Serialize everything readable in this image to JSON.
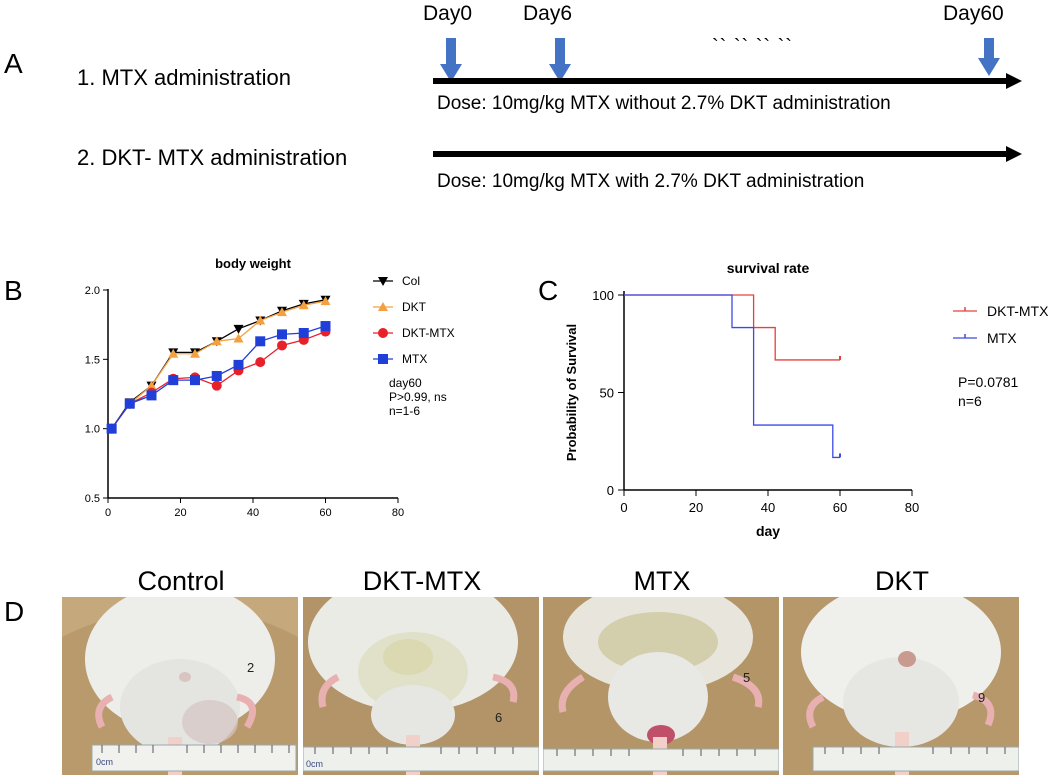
{
  "panel_a": {
    "letter": "A",
    "days": [
      "Day0",
      "Day6",
      "Day60"
    ],
    "ellipsis": "`` `` `` ``",
    "rows": [
      {
        "label": "1. MTX administration",
        "dose": "Dose:  10mg/kg MTX without 2.7% DKT administration"
      },
      {
        "label": "2. DKT- MTX administration",
        "dose": "Dose:  10mg/kg MTX with 2.7% DKT administration"
      }
    ]
  },
  "panel_d": {
    "letter": "D",
    "photos": [
      {
        "title": "Control",
        "mark": "2"
      },
      {
        "title": "DKT-MTX",
        "mark": "6"
      },
      {
        "title": "MTX",
        "mark": "5"
      },
      {
        "title": "DKT",
        "mark": "9"
      }
    ],
    "ruler_label": "0cm"
  },
  "colors": {
    "arrow": "#4472c4",
    "col": "#000000",
    "dkt": "#f5a040",
    "dktmtx": "#e8202a",
    "mtx": "#1f3fd8",
    "surv_dktmtx": "#e8403a",
    "surv_mtx": "#3a4ae8"
  },
  "chart_data": [
    {
      "type": "line",
      "panel": "B",
      "title": "body weight",
      "xlabel": "",
      "ylabel": "",
      "xlim": [
        0,
        80
      ],
      "ylim": [
        0.5,
        2.0
      ],
      "xticks": [
        0,
        20,
        40,
        60,
        80
      ],
      "yticks": [
        0.5,
        1.0,
        1.5,
        2.0
      ],
      "ytick_labels": [
        "0.5",
        "1.0",
        "1.5",
        "2.0"
      ],
      "x": [
        1,
        6,
        12,
        18,
        24,
        30,
        36,
        42,
        48,
        54,
        60
      ],
      "series": [
        {
          "name": "Col",
          "marker": "triangle-down",
          "color": "#000000",
          "values": [
            1.0,
            1.19,
            1.31,
            1.55,
            1.55,
            1.63,
            1.72,
            1.78,
            1.85,
            1.9,
            1.93
          ]
        },
        {
          "name": "DKT",
          "marker": "triangle-up",
          "color": "#f5a040",
          "values": [
            1.0,
            1.18,
            1.31,
            1.54,
            1.54,
            1.63,
            1.65,
            1.78,
            1.84,
            1.89,
            1.92
          ]
        },
        {
          "name": "DKT-MTX",
          "marker": "circle",
          "color": "#e8202a",
          "values": [
            1.0,
            1.18,
            1.26,
            1.36,
            1.37,
            1.31,
            1.42,
            1.48,
            1.6,
            1.64,
            1.7
          ]
        },
        {
          "name": "MTX",
          "marker": "square",
          "color": "#1f3fd8",
          "values": [
            1.0,
            1.18,
            1.24,
            1.35,
            1.35,
            1.38,
            1.46,
            1.63,
            1.68,
            1.69,
            1.74
          ]
        }
      ],
      "annotation": [
        "day60",
        "P>0.99, ns",
        "n=1-6"
      ]
    },
    {
      "type": "line",
      "panel": "C",
      "title": "survival rate",
      "xlabel": "day",
      "ylabel": "Probability of Survival",
      "xlim": [
        0,
        80
      ],
      "ylim": [
        0,
        100
      ],
      "xticks": [
        0,
        20,
        40,
        60,
        80
      ],
      "yticks": [
        0,
        50,
        100
      ],
      "series": [
        {
          "name": "DKT-MTX",
          "color": "#e8403a",
          "steps": [
            [
              0,
              100
            ],
            [
              36,
              100
            ],
            [
              36,
              83.3
            ],
            [
              42,
              83.3
            ],
            [
              42,
              66.7
            ],
            [
              60,
              66.7
            ]
          ]
        },
        {
          "name": "MTX",
          "color": "#3a4ae8",
          "steps": [
            [
              0,
              100
            ],
            [
              30,
              100
            ],
            [
              30,
              83.3
            ],
            [
              36,
              83.3
            ],
            [
              36,
              33.3
            ],
            [
              58,
              33.3
            ],
            [
              58,
              16.7
            ],
            [
              60,
              16.7
            ]
          ]
        }
      ],
      "annotation": [
        "P=0.0781",
        "n=6"
      ]
    }
  ]
}
